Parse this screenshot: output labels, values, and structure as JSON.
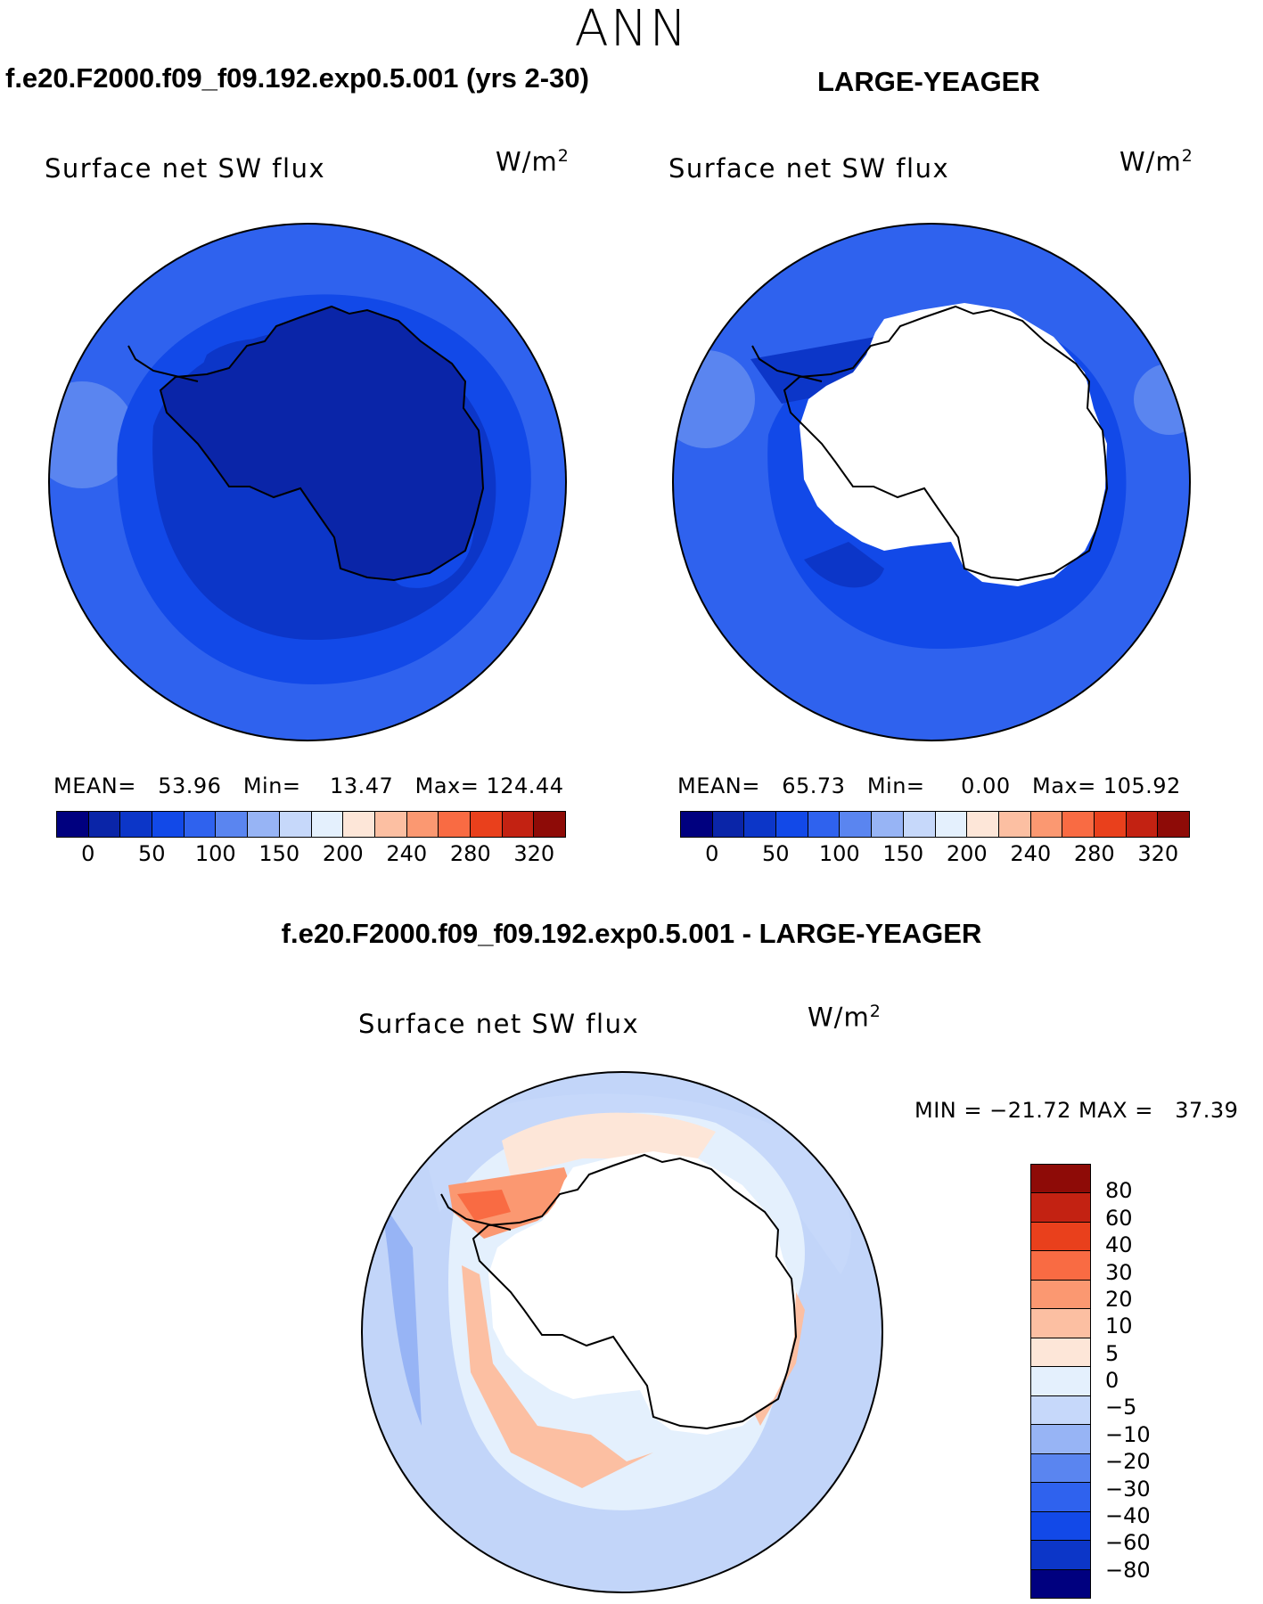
{
  "season": "ANN",
  "variable": "Surface net SW flux",
  "units_base": "W/m",
  "units_exp": "2",
  "panels": [
    {
      "title": "f.e20.F2000.f09_f09.192.exp0.5.001 (yrs 2-30)",
      "stats": "MEAN=   53.96   Min=    13.47   Max= 124.44"
    },
    {
      "title": "LARGE-YEAGER",
      "stats": "MEAN=   65.73   Min=     0.00   Max= 105.92"
    }
  ],
  "diff": {
    "title": "f.e20.F2000.f09_f09.192.exp0.5.001 - LARGE-YEAGER",
    "minmax": "MIN = −21.72 MAX =   37.39"
  },
  "colorbar": {
    "colors": [
      "#00007f",
      "#0a25a8",
      "#0c36c8",
      "#1249e8",
      "#2f62ee",
      "#5a85f0",
      "#97b4f5",
      "#c6d8fa",
      "#e4f0fd",
      "#fde6d8",
      "#fcbfa2",
      "#fb9871",
      "#f96b43",
      "#e9401c",
      "#c32212",
      "#8e0b07"
    ],
    "ticks": [
      "0",
      "50",
      "100",
      "150",
      "200",
      "240",
      "280",
      "320"
    ]
  },
  "diff_colorbar": {
    "colors": [
      "#8e0b07",
      "#c32212",
      "#e9401c",
      "#f96b43",
      "#fb9871",
      "#fcbfa2",
      "#fde6d8",
      "#e4f0fd",
      "#c6d8fa",
      "#97b4f5",
      "#5a85f0",
      "#2f62ee",
      "#1249e8",
      "#0c36c8",
      "#00007f"
    ],
    "ticks": [
      "80",
      "60",
      "40",
      "30",
      "20",
      "10",
      "5",
      "0",
      "−5",
      "−10",
      "−20",
      "−30",
      "−40",
      "−60",
      "−80"
    ]
  }
}
